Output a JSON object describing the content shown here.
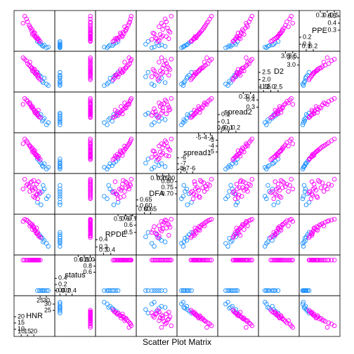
{
  "chart_data": {
    "type": "scatter_matrix",
    "title": "Scatter Plot Matrix",
    "color_by": "status",
    "colors": [
      "#1e90ff",
      "#ff00ff"
    ],
    "variables": [
      {
        "name": "HNR",
        "lim": [
          6,
          35
        ],
        "ticks": [
          10,
          15,
          20,
          25,
          30
        ],
        "values": [
          26.8,
          30.1,
          24.5,
          28.3,
          22.9,
          31.5,
          25.7,
          27.4,
          20.5,
          18.2,
          22.7,
          15.1,
          24.0,
          19.6,
          12.8,
          21.3,
          17.4,
          23.1,
          16.3,
          20.0,
          25.2,
          14.2,
          19.0,
          21.9,
          18.7,
          22.2,
          16.9,
          23.6,
          11.5,
          20.8
        ]
      },
      {
        "name": "status",
        "lim": [
          -0.1,
          1.1
        ],
        "ticks": [
          {
            "value": 0,
            "label": "0.0"
          },
          0.2,
          0.4,
          0.6,
          0.8,
          {
            "value": 1,
            "label": "1.0"
          }
        ],
        "values": [
          0,
          0,
          0,
          0,
          0,
          0,
          0,
          0,
          1,
          1,
          1,
          1,
          1,
          1,
          1,
          1,
          1,
          1,
          1,
          1,
          1,
          1,
          1,
          1,
          1,
          1,
          1,
          1,
          1,
          1
        ]
      },
      {
        "name": "RPDE",
        "lim": [
          0.22,
          0.72
        ],
        "ticks": [
          0.3,
          0.4,
          0.5,
          0.6,
          0.7
        ],
        "values": [
          0.42,
          0.35,
          0.47,
          0.39,
          0.5,
          0.31,
          0.44,
          0.37,
          0.55,
          0.6,
          0.48,
          0.66,
          0.45,
          0.58,
          0.68,
          0.52,
          0.62,
          0.5,
          0.64,
          0.57,
          0.43,
          0.67,
          0.54,
          0.49,
          0.61,
          0.56,
          0.59,
          0.46,
          0.65,
          0.53
        ]
      },
      {
        "name": "DFA",
        "lim": [
          0.55,
          0.85
        ],
        "ticks": [
          {
            "value": 0.6,
            "label": "0.60"
          },
          0.65,
          {
            "value": 0.7,
            "label": "0.70"
          },
          0.75,
          {
            "value": 0.8,
            "label": "0.80"
          }
        ],
        "values": [
          0.72,
          0.66,
          0.7,
          0.74,
          0.63,
          0.68,
          0.61,
          0.77,
          0.75,
          0.8,
          0.7,
          0.78,
          0.72,
          0.68,
          0.82,
          0.74,
          0.79,
          0.66,
          0.76,
          0.81,
          0.71,
          0.77,
          0.73,
          0.69,
          0.75,
          0.78,
          0.72,
          0.8,
          0.74,
          0.67
        ]
      },
      {
        "name": "spread1",
        "lim": [
          -8.3,
          -2.1
        ],
        "ticks": [
          -8,
          -7,
          -6,
          -5,
          -4,
          -3
        ],
        "values": [
          -7.3,
          -7.9,
          -6.6,
          -7.0,
          -6.2,
          -7.6,
          -6.9,
          -7.5,
          -5.2,
          -4.5,
          -5.8,
          -3.4,
          -6.1,
          -4.9,
          -2.8,
          -5.5,
          -4.1,
          -5.9,
          -3.8,
          -4.7,
          -6.3,
          -3.1,
          -5.0,
          -5.4,
          -4.3,
          -5.6,
          -4.0,
          -5.7,
          -3.6,
          -4.8
        ]
      },
      {
        "name": "spread2",
        "lim": [
          -0.02,
          0.48
        ],
        "ticks": [
          {
            "value": 0,
            "label": "0.0"
          },
          0.1,
          0.2,
          0.3,
          0.4
        ],
        "values": [
          0.11,
          0.06,
          0.18,
          0.15,
          0.22,
          0.09,
          0.2,
          0.13,
          0.25,
          0.3,
          0.2,
          0.38,
          0.17,
          0.28,
          0.42,
          0.22,
          0.33,
          0.19,
          0.35,
          0.27,
          0.16,
          0.4,
          0.31,
          0.24,
          0.29,
          0.21,
          0.36,
          0.26,
          0.34,
          0.23
        ]
      },
      {
        "name": "D2",
        "lim": [
          1.3,
          3.8
        ],
        "ticks": [
          1.5,
          {
            "value": 2,
            "label": "2.0"
          },
          2.5,
          {
            "value": 3,
            "label": "3.0"
          },
          3.5
        ],
        "values": [
          1.9,
          1.7,
          2.3,
          2.1,
          2.5,
          1.6,
          2.2,
          1.8,
          2.5,
          2.8,
          2.3,
          3.1,
          2.1,
          2.6,
          3.4,
          2.4,
          2.9,
          2.2,
          3.0,
          2.7,
          2.0,
          3.3,
          2.6,
          2.4,
          2.8,
          2.5,
          3.2,
          2.3,
          3.5,
          2.7
        ]
      },
      {
        "name": "PPE",
        "lim": [
          0.03,
          0.55
        ],
        "ticks": [
          0.1,
          0.2,
          0.3,
          0.4,
          0.5
        ],
        "values": [
          0.08,
          0.05,
          0.12,
          0.09,
          0.14,
          0.06,
          0.1,
          0.07,
          0.22,
          0.29,
          0.18,
          0.42,
          0.15,
          0.25,
          0.5,
          0.2,
          0.33,
          0.17,
          0.37,
          0.27,
          0.14,
          0.46,
          0.24,
          0.19,
          0.31,
          0.21,
          0.35,
          0.18,
          0.4,
          0.26
        ]
      }
    ]
  }
}
